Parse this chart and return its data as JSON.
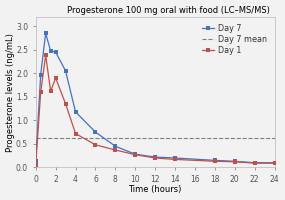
{
  "title": "Progesterone 100 mg oral with food (LC–MS/MS)",
  "xlabel": "Time (hours)",
  "ylabel": "Progesterone levels (ng/mL)",
  "day7_x": [
    0,
    0.5,
    1,
    1.5,
    2,
    3,
    4,
    6,
    8,
    10,
    12,
    14,
    18,
    20,
    22,
    24
  ],
  "day7_y": [
    0.13,
    1.97,
    2.85,
    2.47,
    2.45,
    2.05,
    1.18,
    0.75,
    0.45,
    0.28,
    0.22,
    0.2,
    0.15,
    0.13,
    0.1,
    0.1
  ],
  "day1_x": [
    0,
    0.5,
    1,
    1.5,
    2,
    3,
    4,
    6,
    8,
    10,
    12,
    14,
    18,
    20,
    22,
    24
  ],
  "day1_y": [
    0.05,
    1.6,
    2.38,
    1.62,
    1.9,
    1.35,
    0.72,
    0.48,
    0.37,
    0.27,
    0.2,
    0.17,
    0.13,
    0.12,
    0.09,
    0.09
  ],
  "day7_mean": 0.63,
  "day7_color": "#4472C4",
  "day1_color": "#C0504D",
  "mean_color": "#7F7F7F",
  "bg_color": "#f2f2f2",
  "xlim": [
    0,
    24
  ],
  "ylim": [
    0,
    3.2
  ],
  "yticks": [
    0.0,
    0.5,
    1.0,
    1.5,
    2.0,
    2.5,
    3.0
  ],
  "xticks": [
    0,
    2,
    4,
    6,
    8,
    10,
    12,
    14,
    16,
    18,
    20,
    22,
    24
  ],
  "title_fontsize": 6.0,
  "label_fontsize": 6.0,
  "tick_fontsize": 5.5,
  "legend_fontsize": 5.8
}
